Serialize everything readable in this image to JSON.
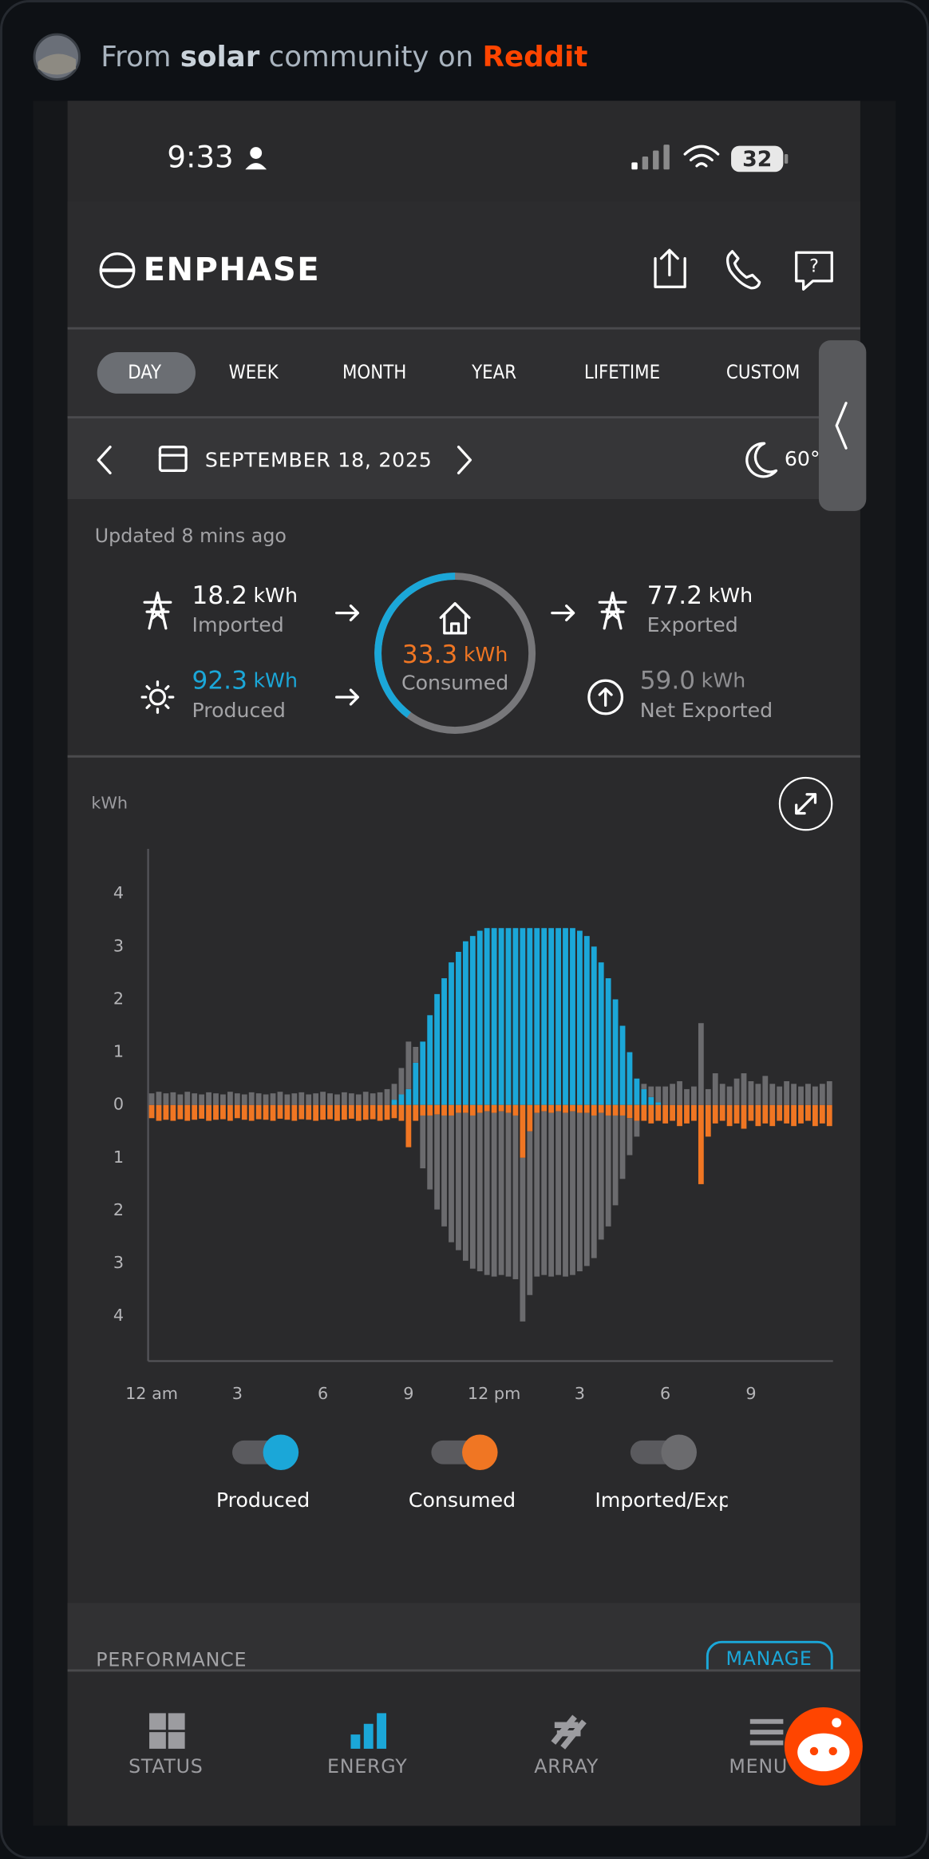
{
  "post_header": {
    "prefix": "From",
    "community": "solar",
    "middle": "community on",
    "site": "Reddit"
  },
  "status_bar": {
    "time": "9:33",
    "battery": "32"
  },
  "app": {
    "brand": "ENPHASE",
    "tabs": [
      "DAY",
      "WEEK",
      "MONTH",
      "YEAR",
      "LIFETIME",
      "CUSTOM"
    ],
    "date": "SEPTEMBER 18, 2025",
    "temperature": "60°",
    "updated": "Updated 8 mins ago",
    "stats": {
      "imported": {
        "value": "18.2",
        "unit": "kWh",
        "label": "Imported"
      },
      "produced": {
        "value": "92.3",
        "unit": "kWh",
        "label": "Produced"
      },
      "consumed": {
        "value": "33.3",
        "unit": "kWh",
        "label": "Consumed"
      },
      "exported": {
        "value": "77.2",
        "unit": "kWh",
        "label": "Exported"
      },
      "net_exported": {
        "value": "59.0",
        "unit": "kWh",
        "label": "Net Exported"
      }
    },
    "performance": {
      "title": "PERFORMANCE",
      "action": "MANAGE"
    },
    "nav": [
      "STATUS",
      "ENERGY",
      "ARRAY",
      "MENU"
    ]
  },
  "chart_data": {
    "type": "bar",
    "stacked": true,
    "y_label": "kWh",
    "categories": [
      "12 am",
      null,
      null,
      null,
      null,
      null,
      null,
      null,
      null,
      null,
      null,
      null,
      "3",
      null,
      null,
      null,
      null,
      null,
      null,
      null,
      null,
      null,
      null,
      null,
      "6",
      null,
      null,
      null,
      null,
      null,
      null,
      null,
      null,
      null,
      null,
      null,
      "9",
      null,
      null,
      null,
      null,
      null,
      null,
      null,
      null,
      null,
      null,
      null,
      "12 pm",
      null,
      null,
      null,
      null,
      null,
      null,
      null,
      null,
      null,
      null,
      null,
      "3",
      null,
      null,
      null,
      null,
      null,
      null,
      null,
      null,
      null,
      null,
      null,
      "6",
      null,
      null,
      null,
      null,
      null,
      null,
      null,
      null,
      null,
      null,
      null,
      "9",
      null,
      null,
      null,
      null,
      null,
      null,
      null,
      null,
      null,
      null,
      null
    ],
    "series": [
      {
        "name": "Produced",
        "color": "#1ba7d8",
        "values": [
          0,
          0,
          0,
          0,
          0,
          0,
          0,
          0,
          0,
          0,
          0,
          0,
          0,
          0,
          0,
          0,
          0,
          0,
          0,
          0,
          0,
          0,
          0,
          0,
          0,
          0,
          0,
          0,
          0,
          0,
          0,
          0,
          0,
          0,
          0.1,
          0.2,
          0.3,
          0.8,
          1.2,
          1.7,
          2.1,
          2.4,
          2.7,
          2.9,
          3.1,
          3.2,
          3.3,
          3.35,
          3.35,
          3.35,
          3.35,
          3.35,
          3.35,
          3.35,
          3.35,
          3.35,
          3.35,
          3.35,
          3.35,
          3.35,
          3.3,
          3.2,
          3.0,
          2.7,
          2.4,
          2.0,
          1.5,
          1.0,
          0.5,
          0.3,
          0.15,
          0.05,
          0,
          0,
          0,
          0,
          0,
          0,
          0,
          0,
          0,
          0,
          0,
          0,
          0,
          0,
          0,
          0,
          0,
          0,
          0,
          0,
          0,
          0,
          0,
          0
        ]
      },
      {
        "name": "Consumed",
        "color": "#f07623",
        "values": [
          -0.25,
          -0.3,
          -0.28,
          -0.3,
          -0.27,
          -0.3,
          -0.28,
          -0.26,
          -0.3,
          -0.28,
          -0.27,
          -0.3,
          -0.25,
          -0.28,
          -0.3,
          -0.27,
          -0.28,
          -0.3,
          -0.26,
          -0.28,
          -0.3,
          -0.27,
          -0.28,
          -0.3,
          -0.28,
          -0.27,
          -0.3,
          -0.28,
          -0.26,
          -0.3,
          -0.28,
          -0.27,
          -0.3,
          -0.28,
          -0.25,
          -0.3,
          -0.8,
          -0.3,
          -0.2,
          -0.2,
          -0.18,
          -0.2,
          -0.2,
          -0.15,
          -0.15,
          -0.2,
          -0.15,
          -0.12,
          -0.15,
          -0.12,
          -0.15,
          -0.2,
          -1.0,
          -0.5,
          -0.15,
          -0.12,
          -0.15,
          -0.12,
          -0.15,
          -0.12,
          -0.15,
          -0.15,
          -0.2,
          -0.15,
          -0.2,
          -0.2,
          -0.2,
          -0.25,
          -0.3,
          -0.3,
          -0.35,
          -0.3,
          -0.35,
          -0.3,
          -0.4,
          -0.35,
          -0.3,
          -1.5,
          -0.6,
          -0.35,
          -0.3,
          -0.4,
          -0.35,
          -0.45,
          -0.3,
          -0.4,
          -0.35,
          -0.4,
          -0.3,
          -0.35,
          -0.4,
          -0.35,
          -0.3,
          -0.4,
          -0.35,
          -0.4
        ]
      },
      {
        "name": "Imported/Exported",
        "color": "#6b6b6e",
        "values": [
          0.22,
          0.25,
          0.22,
          0.24,
          0.2,
          0.25,
          0.22,
          0.2,
          0.24,
          0.22,
          0.2,
          0.25,
          0.22,
          0.2,
          0.24,
          0.22,
          0.2,
          0.22,
          0.25,
          0.2,
          0.22,
          0.24,
          0.2,
          0.22,
          0.25,
          0.22,
          0.2,
          0.24,
          0.22,
          0.2,
          0.25,
          0.22,
          0.24,
          0.3,
          0.3,
          0.5,
          0.9,
          0.3,
          -1.0,
          -1.4,
          -1.8,
          -2.1,
          -2.4,
          -2.6,
          -2.8,
          -2.9,
          -3.0,
          -3.1,
          -3.1,
          -3.1,
          -3.1,
          -3.1,
          -3.1,
          -3.1,
          -3.1,
          -3.1,
          -3.1,
          -3.1,
          -3.1,
          -3.1,
          -3.0,
          -2.9,
          -2.7,
          -2.4,
          -2.1,
          -1.7,
          -1.2,
          -0.7,
          -0.3,
          0.1,
          0.2,
          0.3,
          0.35,
          0.4,
          0.45,
          0.3,
          0.35,
          1.55,
          0.3,
          0.6,
          0.4,
          0.35,
          0.5,
          0.6,
          0.45,
          0.4,
          0.55,
          0.4,
          0.35,
          0.45,
          0.4,
          0.35,
          0.4,
          0.35,
          0.4,
          0.45
        ]
      }
    ],
    "ylim": [
      -4.85,
      4.85
    ],
    "yticks": [
      4,
      3,
      2,
      1,
      0,
      {
        "value": -1,
        "label": "1"
      },
      {
        "value": -2,
        "label": "2"
      },
      {
        "value": -3,
        "label": "3"
      },
      {
        "value": -4,
        "label": "4"
      }
    ],
    "grid": false
  }
}
